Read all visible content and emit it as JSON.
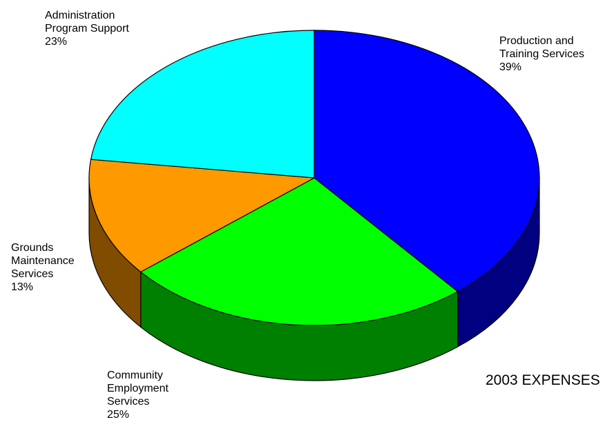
{
  "chart_data": {
    "type": "pie",
    "three_d": true,
    "title": "2003 EXPENSES",
    "legend": "none",
    "slices": [
      {
        "label_lines": [
          "Production and",
          "Training Services"
        ],
        "pct_label": "39%",
        "value": 39,
        "color": "#0000ff",
        "side_color": "#000080"
      },
      {
        "label_lines": [
          "Community",
          "Employment",
          "Services"
        ],
        "pct_label": "25%",
        "value": 25,
        "color": "#00ff00",
        "side_color": "#008000"
      },
      {
        "label_lines": [
          "Grounds",
          "Maintenance",
          "Services"
        ],
        "pct_label": "13%",
        "value": 13,
        "color": "#ff9900",
        "side_color": "#804c00"
      },
      {
        "label_lines": [
          "Administration",
          "Program Support"
        ],
        "pct_label": "23%",
        "value": 23,
        "color": "#00ffff",
        "side_color": "#008080"
      }
    ]
  }
}
